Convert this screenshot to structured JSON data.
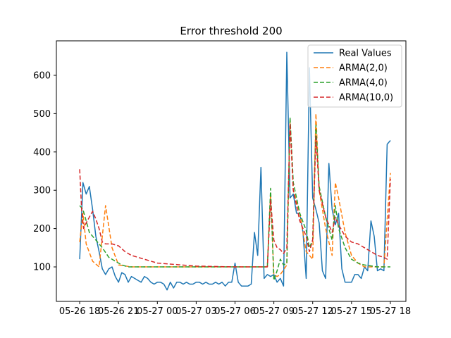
{
  "chart_data": {
    "type": "line",
    "title": "Error threshold 200",
    "xlabel": "",
    "ylabel": "",
    "x_ticks": [
      "05-26 18",
      "05-26 21",
      "05-27 00",
      "05-27 03",
      "05-27 06",
      "05-27 09",
      "05-27 12",
      "05-27 15",
      "05-27 18"
    ],
    "x_tick_hours": [
      18,
      21,
      24,
      27,
      30,
      33,
      36,
      39,
      42
    ],
    "xlim": [
      16.2,
      43.2
    ],
    "ylim": [
      10,
      690
    ],
    "y_ticks": [
      100,
      200,
      300,
      400,
      500,
      600
    ],
    "legend_position": "upper right",
    "series": [
      {
        "name": "Real Values",
        "color": "#1f77b4",
        "dash": "",
        "x": [
          18.0,
          18.25,
          18.5,
          18.75,
          19.0,
          19.25,
          19.5,
          19.75,
          20.0,
          20.25,
          20.5,
          20.75,
          21.0,
          21.25,
          21.5,
          21.75,
          22.0,
          22.25,
          22.5,
          22.75,
          23.0,
          23.25,
          23.5,
          23.75,
          24.0,
          24.25,
          24.5,
          24.75,
          25.0,
          25.25,
          25.5,
          25.75,
          26.0,
          26.25,
          26.5,
          26.75,
          27.0,
          27.25,
          27.5,
          27.75,
          28.0,
          28.25,
          28.5,
          28.75,
          29.0,
          29.25,
          29.5,
          29.75,
          30.0,
          30.25,
          30.5,
          30.75,
          31.0,
          31.25,
          31.5,
          31.75,
          32.0,
          32.25,
          32.5,
          32.75,
          33.0,
          33.25,
          33.5,
          33.75,
          34.0,
          34.25,
          34.5,
          34.75,
          35.0,
          35.25,
          35.5,
          35.75,
          36.0,
          36.25,
          36.5,
          36.75,
          37.0,
          37.25,
          37.5,
          37.75,
          38.0,
          38.25,
          38.5,
          38.75,
          39.0,
          39.25,
          39.5,
          39.75,
          40.0,
          40.25,
          40.5,
          40.75,
          41.0,
          41.25,
          41.5,
          41.75,
          42.0
        ],
        "y": [
          120,
          320,
          290,
          310,
          250,
          180,
          140,
          95,
          80,
          95,
          100,
          75,
          60,
          85,
          80,
          60,
          75,
          70,
          65,
          60,
          75,
          70,
          60,
          55,
          60,
          60,
          55,
          40,
          60,
          45,
          60,
          60,
          55,
          60,
          55,
          55,
          60,
          60,
          55,
          60,
          55,
          55,
          60,
          55,
          60,
          50,
          60,
          60,
          110,
          60,
          50,
          50,
          50,
          55,
          190,
          130,
          360,
          70,
          80,
          75,
          80,
          60,
          70,
          50,
          660,
          280,
          290,
          240,
          240,
          190,
          70,
          620,
          280,
          250,
          215,
          90,
          70,
          370,
          250,
          210,
          240,
          95,
          60,
          60,
          60,
          80,
          80,
          70,
          100,
          90,
          220,
          180,
          90,
          95,
          90,
          420,
          430
        ]
      },
      {
        "name": "ARMA(2,0)",
        "color": "#ff7f0e",
        "dash": "6,3",
        "x": [
          18.0,
          18.25,
          18.5,
          19.0,
          19.5,
          20.0,
          20.5,
          21.0,
          22.0,
          24.0,
          27.0,
          30.0,
          31.0,
          32.5,
          32.75,
          33.0,
          33.25,
          33.5,
          34.0,
          34.25,
          34.5,
          35.0,
          35.5,
          36.0,
          36.25,
          36.5,
          37.0,
          37.5,
          37.75,
          38.0,
          38.5,
          39.0,
          39.5,
          40.0,
          40.5,
          41.0,
          41.5,
          42.0
        ],
        "y": [
          165,
          240,
          160,
          115,
          100,
          260,
          150,
          105,
          100,
          100,
          100,
          100,
          100,
          100,
          290,
          80,
          75,
          80,
          105,
          480,
          300,
          240,
          140,
          120,
          500,
          300,
          200,
          130,
          320,
          280,
          190,
          130,
          110,
          100,
          100,
          100,
          100,
          345
        ]
      },
      {
        "name": "ARMA(4,0)",
        "color": "#2ca02c",
        "dash": "6,3",
        "x": [
          18.0,
          18.25,
          18.5,
          18.75,
          19.25,
          19.75,
          20.25,
          20.75,
          21.25,
          21.75,
          22.5,
          24.0,
          27.0,
          30.0,
          31.5,
          32.5,
          32.75,
          33.0,
          33.25,
          33.5,
          33.75,
          34.0,
          34.25,
          34.5,
          35.0,
          35.5,
          35.75,
          36.0,
          36.25,
          36.5,
          37.0,
          37.5,
          37.75,
          38.0,
          38.5,
          39.0,
          39.5,
          40.0,
          41.0,
          42.0
        ],
        "y": [
          260,
          250,
          220,
          190,
          170,
          150,
          125,
          115,
          105,
          100,
          100,
          100,
          100,
          100,
          100,
          100,
          305,
          65,
          90,
          120,
          105,
          110,
          490,
          320,
          240,
          195,
          150,
          170,
          470,
          310,
          230,
          170,
          260,
          200,
          150,
          120,
          110,
          105,
          100,
          100
        ]
      },
      {
        "name": "ARMA(10,0)",
        "color": "#d62728",
        "dash": "6,3",
        "x": [
          18.0,
          18.15,
          18.3,
          18.5,
          18.75,
          19.0,
          19.25,
          19.5,
          19.75,
          20.0,
          20.5,
          21.0,
          21.5,
          22.0,
          22.5,
          24.0,
          27.0,
          30.0,
          32.5,
          32.75,
          33.0,
          33.25,
          33.5,
          33.75,
          34.0,
          34.25,
          34.5,
          35.0,
          35.5,
          35.75,
          36.0,
          36.25,
          36.5,
          37.0,
          37.5,
          37.75,
          38.0,
          38.5,
          39.0,
          39.5,
          40.0,
          40.5,
          41.0,
          41.5,
          41.75,
          42.0
        ],
        "y": [
          355,
          250,
          200,
          215,
          230,
          245,
          225,
          200,
          165,
          160,
          160,
          155,
          140,
          130,
          125,
          110,
          102,
          100,
          100,
          275,
          170,
          150,
          145,
          135,
          150,
          475,
          300,
          220,
          180,
          140,
          170,
          440,
          300,
          230,
          190,
          230,
          210,
          180,
          165,
          160,
          150,
          140,
          130,
          125,
          120,
          330
        ]
      }
    ]
  }
}
